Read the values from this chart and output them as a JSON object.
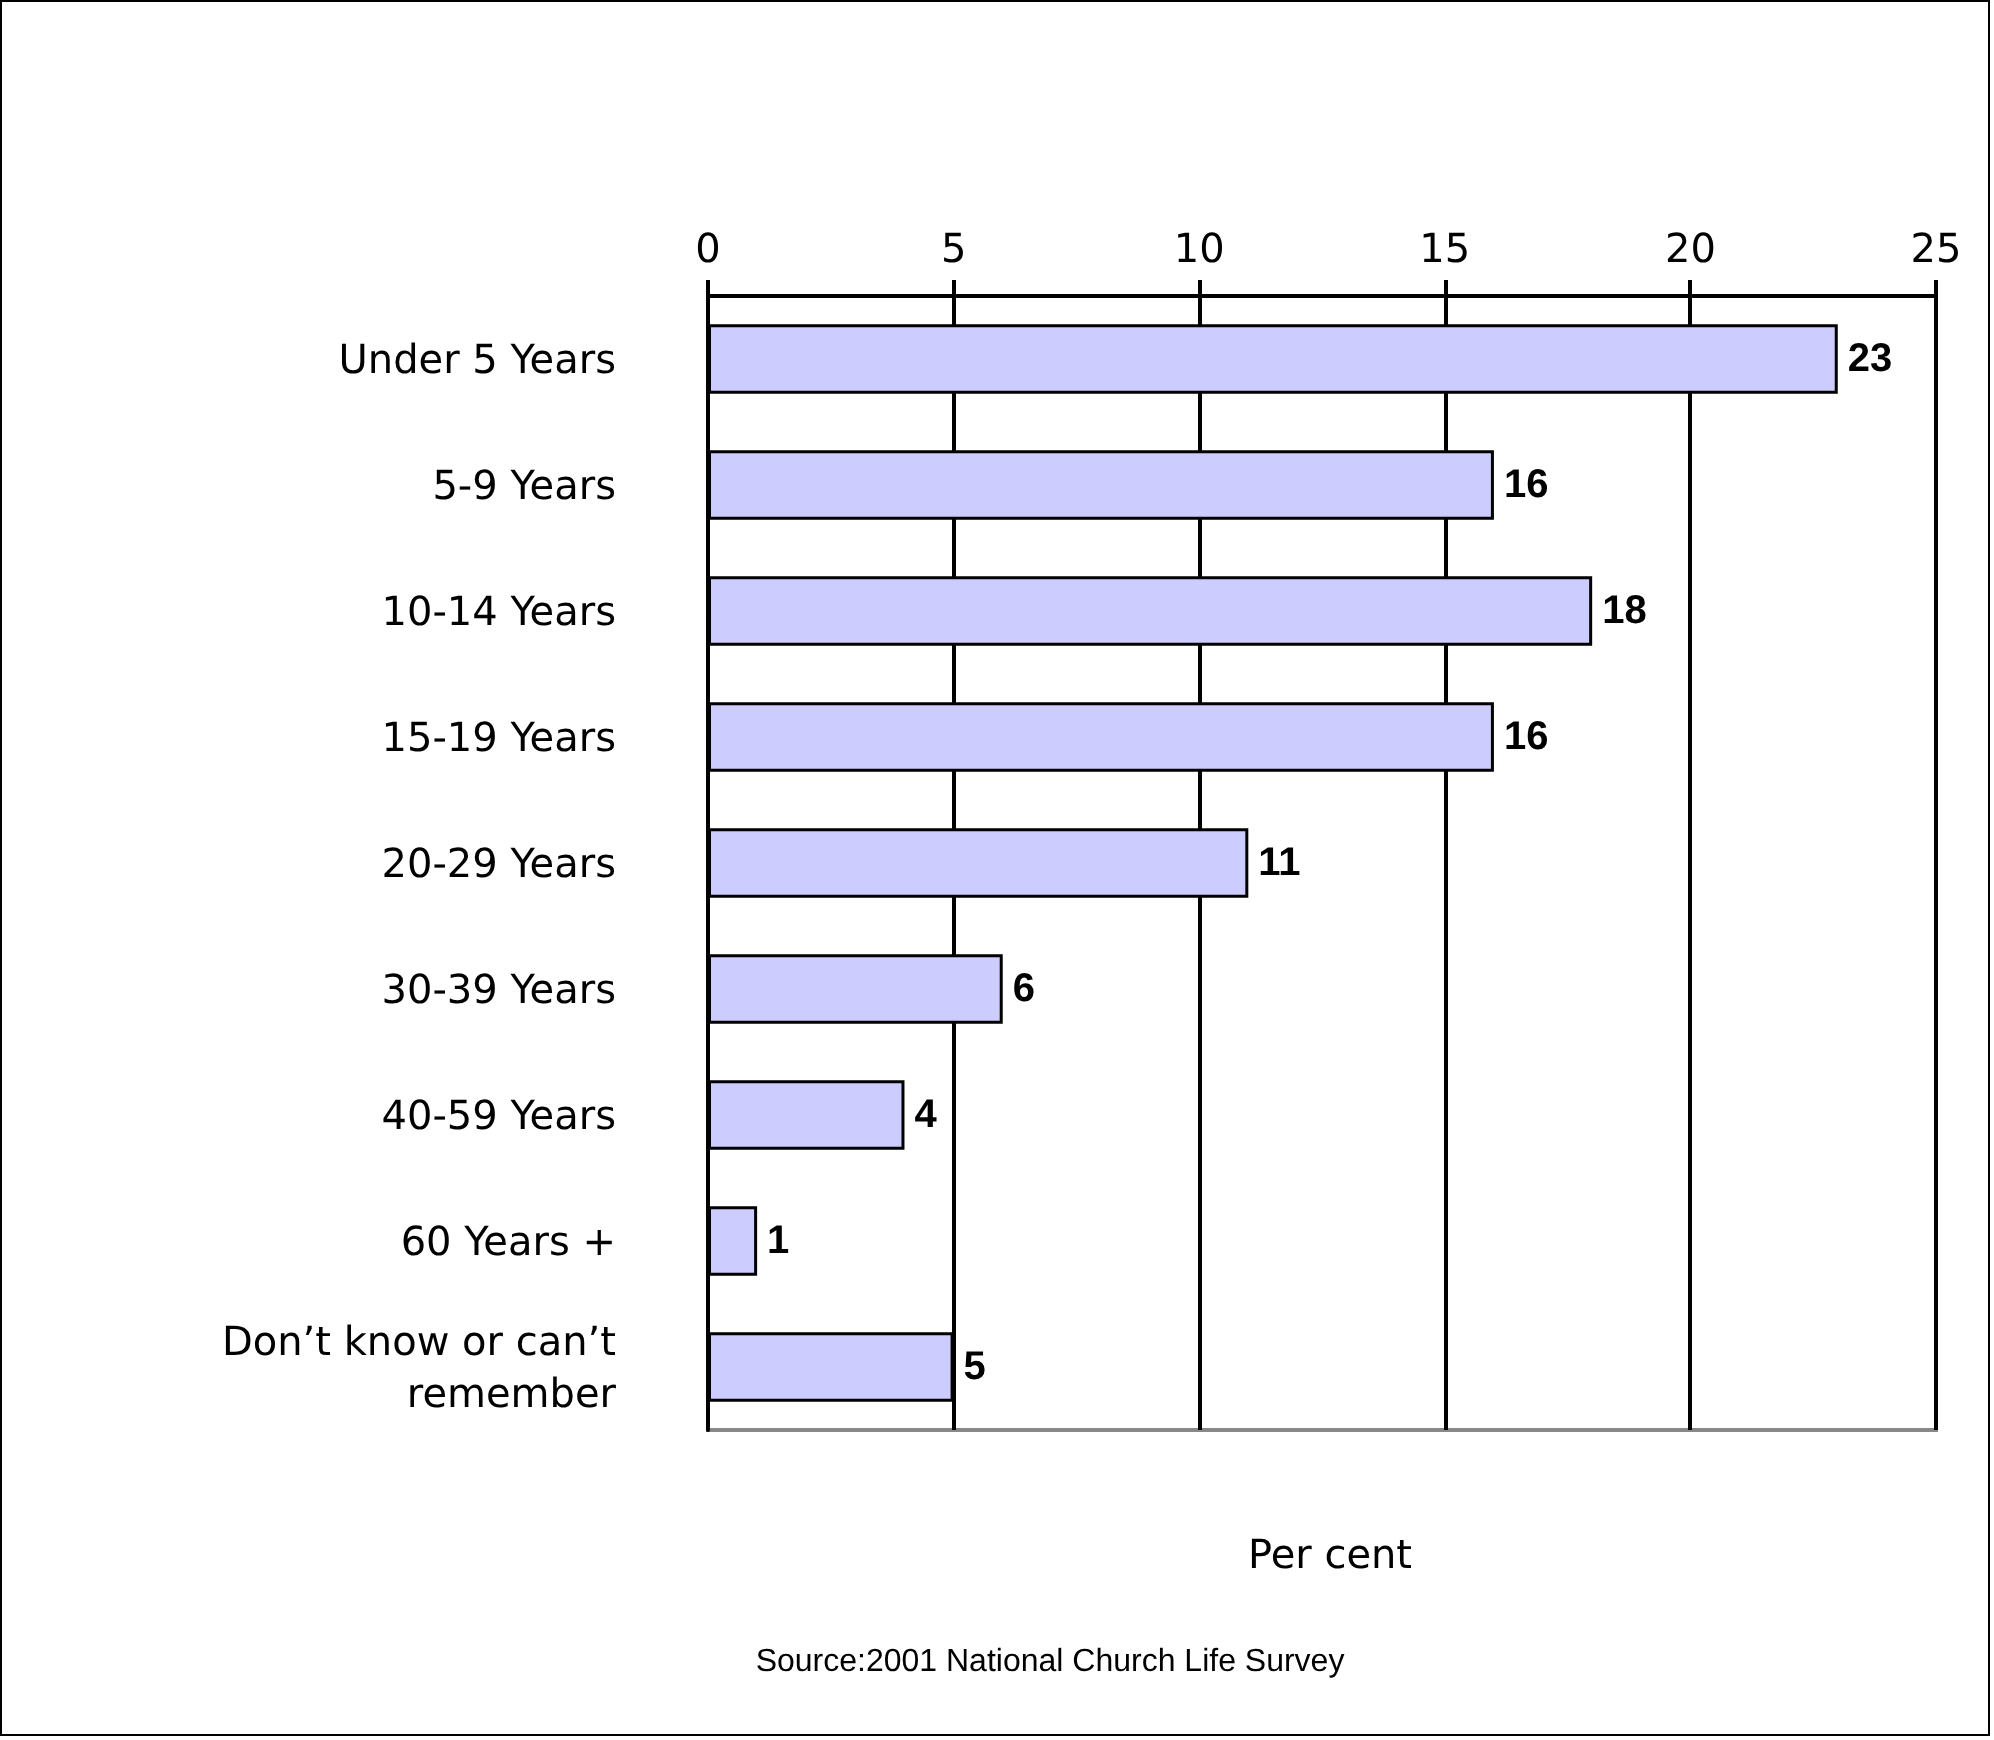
{
  "chart_data": {
    "type": "bar",
    "orientation": "horizontal",
    "categories": [
      "Under 5 Years",
      "5-9 Years",
      "10-14 Years",
      "15-19 Years",
      "20-29 Years",
      "30-39 Years",
      "40-59 Years",
      "60 Years +",
      "Don’t know or can’t\nremember"
    ],
    "values": [
      23,
      16,
      18,
      16,
      11,
      6,
      4,
      1,
      5
    ],
    "color": "#ccccff",
    "xlim": [
      0,
      25
    ],
    "xticks": [
      0,
      5,
      10,
      15,
      20,
      25
    ],
    "xlabel": "Per cent",
    "annotations": [
      "Source:2001 National Church Life Survey"
    ],
    "data_labels": true,
    "grid": "x"
  }
}
